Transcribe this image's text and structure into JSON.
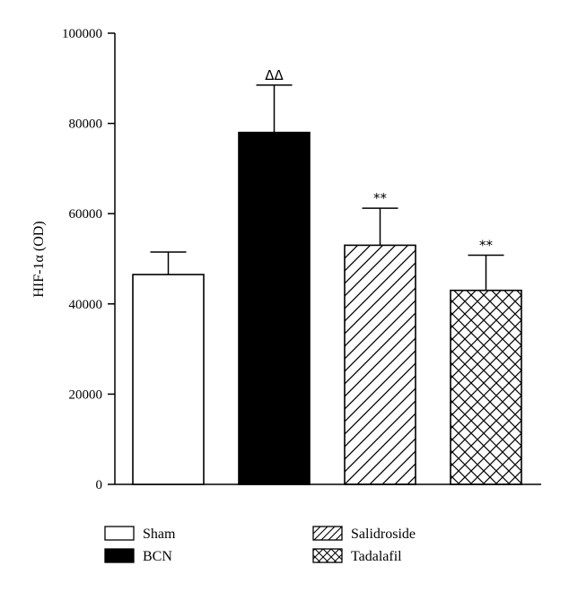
{
  "chart_data": {
    "type": "bar",
    "ylabel": "HIF-1α (OD)",
    "ylim": [
      0,
      100000
    ],
    "yticks": [
      0,
      20000,
      40000,
      60000,
      80000,
      100000
    ],
    "ytick_labels": [
      "0",
      "20000",
      "40000",
      "60000",
      "80000",
      "100000"
    ],
    "bars": [
      {
        "name": "Sham",
        "value": 46500,
        "error": 5000,
        "annotation": "",
        "fill": "white"
      },
      {
        "name": "BCN",
        "value": 78000,
        "error": 10500,
        "annotation": "ΔΔ",
        "fill": "black"
      },
      {
        "name": "Salidroside",
        "value": 53000,
        "error": 8200,
        "annotation": "**",
        "fill": "diagonal"
      },
      {
        "name": "Tadalafil",
        "value": 43000,
        "error": 7800,
        "annotation": "**",
        "fill": "crosshatch"
      }
    ],
    "legend": {
      "placement": "bottom",
      "entries": [
        "Sham",
        "BCN",
        "Salidroside",
        "Tadalafil"
      ]
    },
    "grid": false,
    "colors": {
      "line": "#000000",
      "background": "#ffffff"
    }
  }
}
